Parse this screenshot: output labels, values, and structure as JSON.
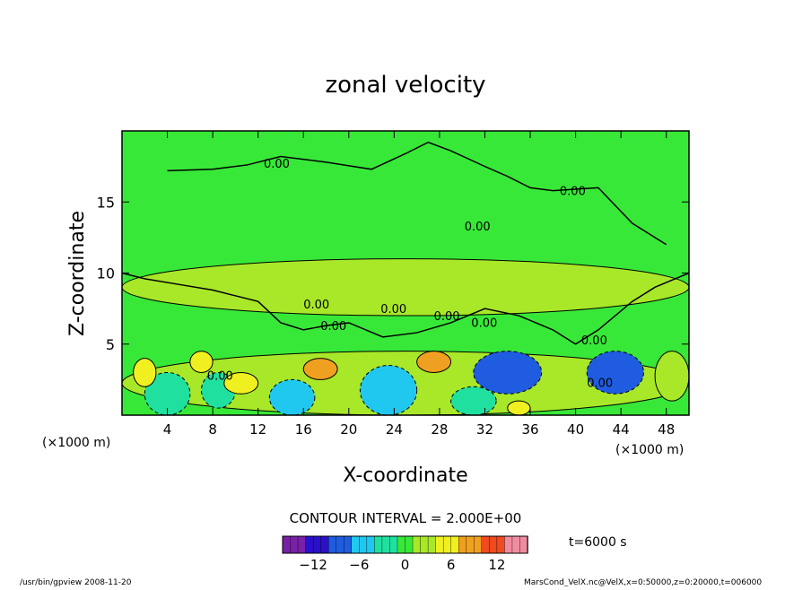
{
  "chart_data": {
    "type": "heatmap",
    "title": "zonal velocity",
    "xlabel": "X-coordinate",
    "ylabel": "Z-coordinate",
    "x_unit": "(×1000 m)",
    "y_unit": "(×1000 m)",
    "xlim": [
      0,
      50
    ],
    "ylim": [
      0,
      20
    ],
    "x_ticks": [
      "4",
      "8",
      "12",
      "16",
      "20",
      "24",
      "28",
      "32",
      "36",
      "40",
      "44",
      "48"
    ],
    "y_ticks": [
      "5",
      "10",
      "15"
    ],
    "contour_interval_text": "CONTOUR INTERVAL = 2.000E+00",
    "contour_labels": [
      "0.00",
      "0.00",
      "0.00",
      "0.00",
      "0.00",
      "0.00",
      "0.00",
      "0.00",
      "0.00",
      "0.00",
      "0.00"
    ],
    "colorbar": {
      "range": [
        -16,
        16
      ],
      "ticks": [
        "−12",
        "−6",
        "0",
        "6",
        "12"
      ],
      "colors": [
        "#7a1fa8",
        "#2a10c8",
        "#1f5ce0",
        "#20c8f0",
        "#20e0a0",
        "#38e838",
        "#a8e828",
        "#f0f020",
        "#f0a020",
        "#f04a20",
        "#f08ca0"
      ]
    },
    "time_label": "t=6000 s",
    "footer_left": "/usr/bin/gpview  2008-11-20",
    "footer_right": "MarsCond_VelX.nc@VelX,x=0:50000,z=0:20000,t=006000",
    "regions": [
      {
        "x": [
          0,
          50
        ],
        "z": [
          0,
          20
        ],
        "value": 0
      },
      {
        "x": [
          0,
          50
        ],
        "z": [
          7,
          11
        ],
        "value": 1.5
      },
      {
        "x": [
          0,
          50
        ],
        "z": [
          0,
          4.5
        ],
        "value": 2
      },
      {
        "x": [
          2,
          6
        ],
        "z": [
          0,
          3
        ],
        "value": -4
      },
      {
        "x": [
          7,
          10
        ],
        "z": [
          0.5,
          3
        ],
        "value": -2
      },
      {
        "x": [
          13,
          17
        ],
        "z": [
          0,
          2.5
        ],
        "value": -5
      },
      {
        "x": [
          21,
          26
        ],
        "z": [
          0,
          3.5
        ],
        "value": -7
      },
      {
        "x": [
          29,
          33
        ],
        "z": [
          0,
          2
        ],
        "value": -4
      },
      {
        "x": [
          31,
          37
        ],
        "z": [
          1.5,
          4.5
        ],
        "value": -9
      },
      {
        "x": [
          41,
          46
        ],
        "z": [
          1.5,
          4.5
        ],
        "value": -8
      },
      {
        "x": [
          1,
          3
        ],
        "z": [
          2,
          4
        ],
        "value": 6
      },
      {
        "x": [
          6,
          8
        ],
        "z": [
          3,
          4.5
        ],
        "value": 5
      },
      {
        "x": [
          9,
          12
        ],
        "z": [
          1.5,
          3
        ],
        "value": 6
      },
      {
        "x": [
          16,
          19
        ],
        "z": [
          2.5,
          4
        ],
        "value": 8
      },
      {
        "x": [
          26,
          29
        ],
        "z": [
          3,
          4.5
        ],
        "value": 8
      },
      {
        "x": [
          34,
          36
        ],
        "z": [
          0,
          1
        ],
        "value": 5
      },
      {
        "x": [
          47,
          50
        ],
        "z": [
          1,
          4.5
        ],
        "value": 4
      }
    ]
  }
}
